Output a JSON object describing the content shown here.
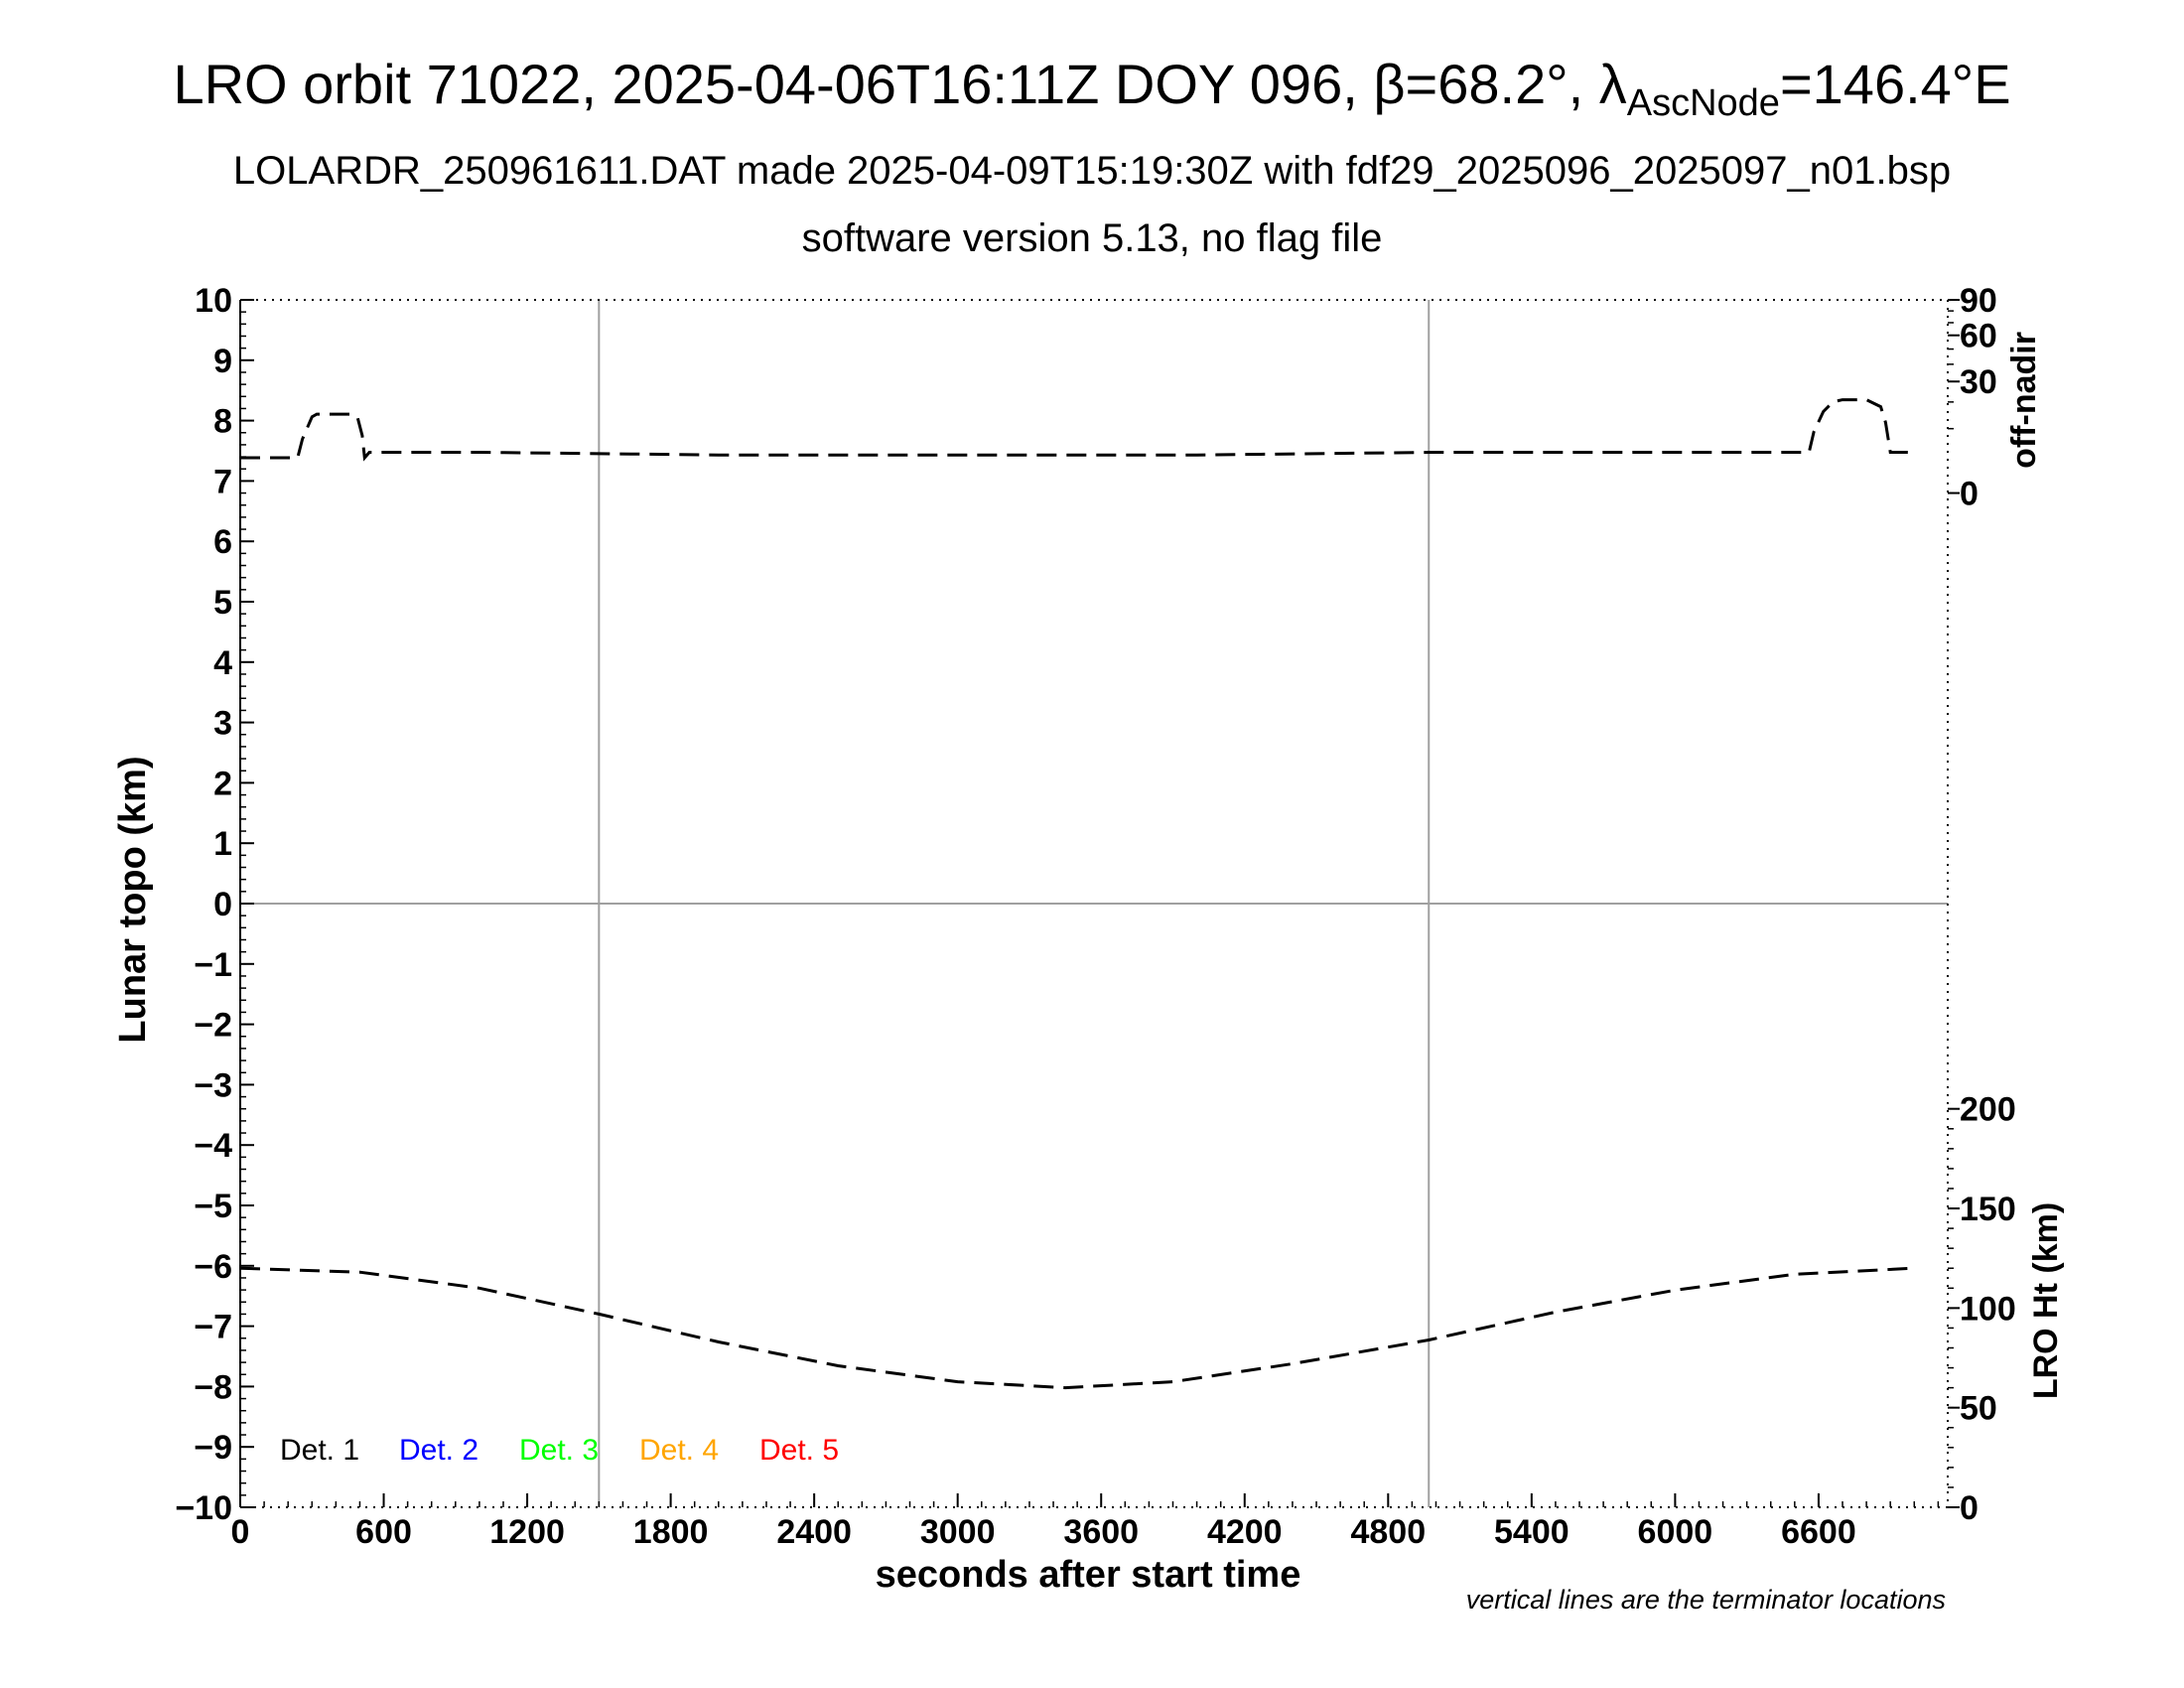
{
  "title": {
    "main_prefix": "LRO orbit 71022, 2025-04-06T16:11Z DOY 096, β=68.2°, λ",
    "main_sub": "AscNode",
    "main_suffix": "=146.4°E",
    "line2": "LOLARDR_250961611.DAT made 2025-04-09T15:19:30Z with fdf29_2025096_2025097_n01.bsp",
    "line3": "software version 5.13, no flag file"
  },
  "colors": {
    "det1": "#000000",
    "det2": "#0000ff",
    "det3": "#00ff00",
    "det4": "#ffa500",
    "det5": "#ff0000",
    "gridline": "#a0a0a0"
  },
  "chart_data": {
    "type": "line",
    "xlabel": "seconds after start time",
    "ylabel": "Lunar topo (km)",
    "y2label_top": "off-nadir",
    "y2label_bottom": "LRO Ht (km)",
    "footnote": "vertical lines are the terminator locations",
    "xlim": [
      0,
      7140
    ],
    "ylim": [
      -10,
      10
    ],
    "x_ticks": [
      0,
      600,
      1200,
      1800,
      2400,
      3000,
      3600,
      4200,
      4800,
      5400,
      6000,
      6600
    ],
    "y_ticks": [
      10,
      9,
      8,
      7,
      6,
      5,
      4,
      3,
      2,
      1,
      0,
      -1,
      -2,
      -3,
      -4,
      -5,
      -6,
      -7,
      -8,
      -9,
      -10
    ],
    "y_tick_labels": [
      "10",
      "9",
      "8",
      "7",
      "6",
      "5",
      "4",
      "3",
      "2",
      "1",
      "0",
      "−1",
      "−2",
      "−3",
      "−4",
      "−5",
      "−6",
      "−7",
      "−8",
      "−9",
      "−10"
    ],
    "offnadir_ticks": [
      90,
      60,
      30,
      0
    ],
    "height_ticks": [
      200,
      150,
      100,
      50,
      0
    ],
    "terminator_x": [
      1500,
      4970
    ],
    "legend": [
      "Det. 1",
      "Det. 2",
      "Det. 3",
      "Det. 4",
      "Det. 5"
    ],
    "series": [
      {
        "name": "off-nadir",
        "axis": "off-nadir",
        "x": [
          0,
          240,
          260,
          300,
          320,
          460,
          490,
          510,
          520,
          540,
          1000,
          2000,
          3000,
          4000,
          5000,
          6000,
          6560,
          6580,
          6620,
          6660,
          6700,
          6800,
          6860,
          6880,
          6900,
          6960,
          7000
        ],
        "values": [
          3,
          3,
          7,
          14,
          15,
          15,
          14,
          8,
          3,
          4,
          4,
          3.5,
          3.5,
          3.5,
          4,
          4,
          4,
          9,
          16,
          20,
          21,
          21,
          18,
          12,
          4,
          4,
          4
        ]
      },
      {
        "name": "LRO Ht",
        "axis": "LRO Ht (km)",
        "x": [
          0,
          500,
          1000,
          1500,
          2000,
          2500,
          3000,
          3450,
          3900,
          4400,
          4970,
          5500,
          6000,
          6500,
          7000
        ],
        "values": [
          120,
          118,
          110,
          97,
          83,
          71,
          63,
          60,
          63,
          72,
          84,
          98,
          109,
          117,
          120
        ]
      }
    ]
  }
}
